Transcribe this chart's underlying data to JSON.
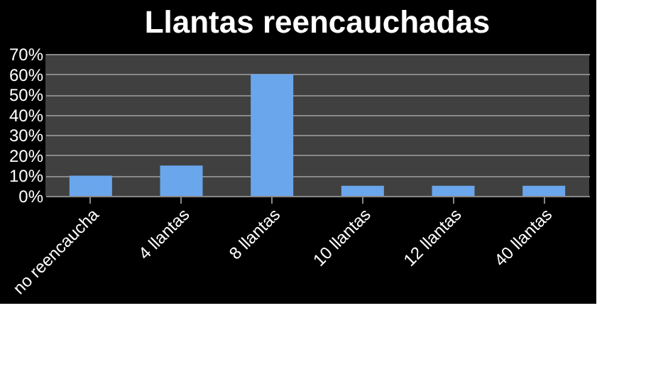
{
  "chart_data": {
    "type": "bar",
    "title": "Llantas reencauchadas",
    "categories": [
      "no reencaucha",
      "4 llantas",
      "8 llantas",
      "10 llantas",
      "12 llantas",
      "40 llantas"
    ],
    "values": [
      10,
      15,
      60,
      5,
      5,
      5
    ],
    "color": "#6aa6ec",
    "ylim": [
      0,
      70
    ],
    "yticks": [
      {
        "value": 0,
        "label": "0%"
      },
      {
        "value": 10,
        "label": "10%"
      },
      {
        "value": 20,
        "label": "20%"
      },
      {
        "value": 30,
        "label": "30%"
      },
      {
        "value": 40,
        "label": "40%"
      },
      {
        "value": 50,
        "label": "50%"
      },
      {
        "value": 60,
        "label": "60%"
      },
      {
        "value": 70,
        "label": "70%"
      }
    ],
    "grid": "y"
  }
}
